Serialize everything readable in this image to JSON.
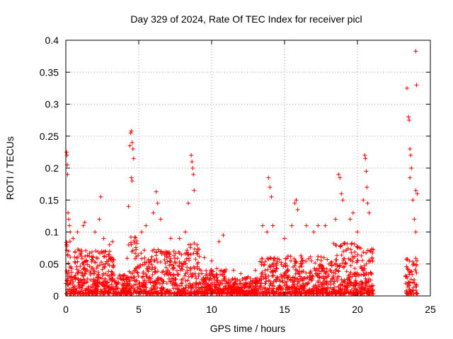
{
  "chart_data": {
    "type": "scatter",
    "title": "Day 329 of 2024, Rate Of TEC Index for receiver picl",
    "xlabel": "GPS time / hours",
    "ylabel": "ROTI / TECUs",
    "xlim": [
      0,
      25
    ],
    "ylim": [
      0,
      0.4
    ],
    "xticks": [
      "0",
      "5",
      "10",
      "15",
      "20",
      "25"
    ],
    "yticks": [
      "0",
      "0.05",
      "0.1",
      "0.15",
      "0.2",
      "0.25",
      "0.3",
      "0.35",
      "0.4"
    ],
    "grid": true,
    "marker": "+",
    "color": "#ff0000",
    "data_gap_hours": [
      21.1,
      23.3
    ],
    "series": [
      {
        "points": [
          [
            0.05,
            0.225
          ],
          [
            0.08,
            0.22
          ],
          [
            0.1,
            0.205
          ],
          [
            0.12,
            0.19
          ],
          [
            0.15,
            0.13
          ],
          [
            0.2,
            0.12
          ],
          [
            0.25,
            0.11
          ],
          [
            0.3,
            0.1
          ],
          [
            0.5,
            0.09
          ],
          [
            0.8,
            0.1
          ],
          [
            1.2,
            0.11
          ],
          [
            1.3,
            0.115
          ],
          [
            2.0,
            0.1
          ],
          [
            2.3,
            0.12
          ],
          [
            2.4,
            0.155
          ],
          [
            2.6,
            0.09
          ],
          [
            3.0,
            0.08
          ],
          [
            3.2,
            0.085
          ],
          [
            4.3,
            0.14
          ],
          [
            4.4,
            0.235
          ],
          [
            4.45,
            0.255
          ],
          [
            4.5,
            0.258
          ],
          [
            4.55,
            0.24
          ],
          [
            4.6,
            0.23
          ],
          [
            4.65,
            0.215
          ],
          [
            4.5,
            0.185
          ],
          [
            4.55,
            0.18
          ],
          [
            5.2,
            0.1
          ],
          [
            5.5,
            0.11
          ],
          [
            6.0,
            0.13
          ],
          [
            6.2,
            0.163
          ],
          [
            6.3,
            0.145
          ],
          [
            6.5,
            0.12
          ],
          [
            7.2,
            0.09
          ],
          [
            7.8,
            0.09
          ],
          [
            8.2,
            0.1
          ],
          [
            8.4,
            0.145
          ],
          [
            8.6,
            0.22
          ],
          [
            8.65,
            0.21
          ],
          [
            8.7,
            0.2
          ],
          [
            8.75,
            0.19
          ],
          [
            8.8,
            0.165
          ],
          [
            9.0,
            0.08
          ],
          [
            9.5,
            0.06
          ],
          [
            10.0,
            0.055
          ],
          [
            10.5,
            0.085
          ],
          [
            10.8,
            0.095
          ],
          [
            11.5,
            0.04
          ],
          [
            12.0,
            0.035
          ],
          [
            12.5,
            0.03
          ],
          [
            13.0,
            0.04
          ],
          [
            13.5,
            0.11
          ],
          [
            13.8,
            0.1
          ],
          [
            13.9,
            0.185
          ],
          [
            14.0,
            0.17
          ],
          [
            14.1,
            0.155
          ],
          [
            14.2,
            0.11
          ],
          [
            15.0,
            0.09
          ],
          [
            15.5,
            0.11
          ],
          [
            15.7,
            0.145
          ],
          [
            15.8,
            0.15
          ],
          [
            15.9,
            0.135
          ],
          [
            16.5,
            0.11
          ],
          [
            17.0,
            0.1
          ],
          [
            17.3,
            0.11
          ],
          [
            17.8,
            0.11
          ],
          [
            18.5,
            0.12
          ],
          [
            18.7,
            0.19
          ],
          [
            18.8,
            0.185
          ],
          [
            18.9,
            0.16
          ],
          [
            19.0,
            0.15
          ],
          [
            19.5,
            0.12
          ],
          [
            19.7,
            0.13
          ],
          [
            20.0,
            0.1
          ],
          [
            20.4,
            0.15
          ],
          [
            20.5,
            0.22
          ],
          [
            20.55,
            0.215
          ],
          [
            20.6,
            0.195
          ],
          [
            20.65,
            0.17
          ],
          [
            20.7,
            0.145
          ],
          [
            20.8,
            0.13
          ],
          [
            21.0,
            0.06
          ],
          [
            23.4,
            0.325
          ],
          [
            23.5,
            0.28
          ],
          [
            23.55,
            0.275
          ],
          [
            23.6,
            0.23
          ],
          [
            23.65,
            0.22
          ],
          [
            23.7,
            0.2
          ],
          [
            23.6,
            0.185
          ],
          [
            23.8,
            0.15
          ],
          [
            24.0,
            0.383
          ],
          [
            24.05,
            0.33
          ],
          [
            24.0,
            0.165
          ],
          [
            24.1,
            0.16
          ],
          [
            23.9,
            0.12
          ],
          [
            24.0,
            0.1
          ]
        ]
      }
    ]
  }
}
